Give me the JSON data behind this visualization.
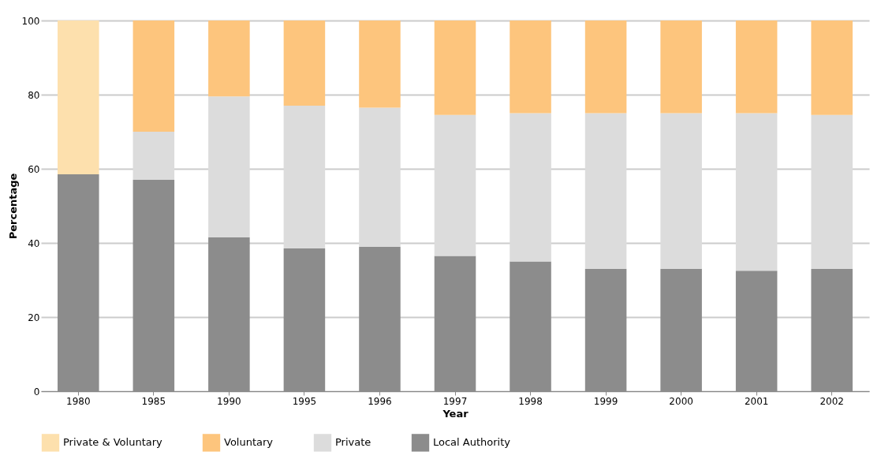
{
  "chart_data": {
    "type": "bar",
    "stacked": true,
    "xlabel": "Year",
    "ylabel": "Percentage",
    "categories": [
      "1980",
      "1985",
      "1990",
      "1995",
      "1996",
      "1997",
      "1998",
      "1999",
      "2000",
      "2001",
      "2002"
    ],
    "series": [
      {
        "name": "Local Authority",
        "color": "#8c8c8c",
        "values": [
          58.5,
          57,
          41.5,
          38.5,
          39,
          36.5,
          35,
          33,
          33,
          32.5,
          33
        ]
      },
      {
        "name": "Private",
        "color": "#dcdcdc",
        "values": [
          null,
          13,
          38,
          38.5,
          37.5,
          38,
          40,
          42,
          42,
          42.5,
          41.5
        ]
      },
      {
        "name": "Voluntary",
        "color": "#fdc57d",
        "values": [
          null,
          30,
          20.5,
          23,
          23.5,
          25.5,
          25,
          25,
          25,
          25,
          25.5
        ]
      },
      {
        "name": "Private & Voluntary",
        "color": "#fde0ad",
        "values": [
          41.5,
          null,
          null,
          null,
          null,
          null,
          null,
          null,
          null,
          null,
          null
        ]
      }
    ],
    "ylim": [
      0,
      100
    ],
    "yticks": [
      0,
      20,
      40,
      60,
      80,
      100
    ],
    "grid": "y",
    "legend": "bottom"
  }
}
